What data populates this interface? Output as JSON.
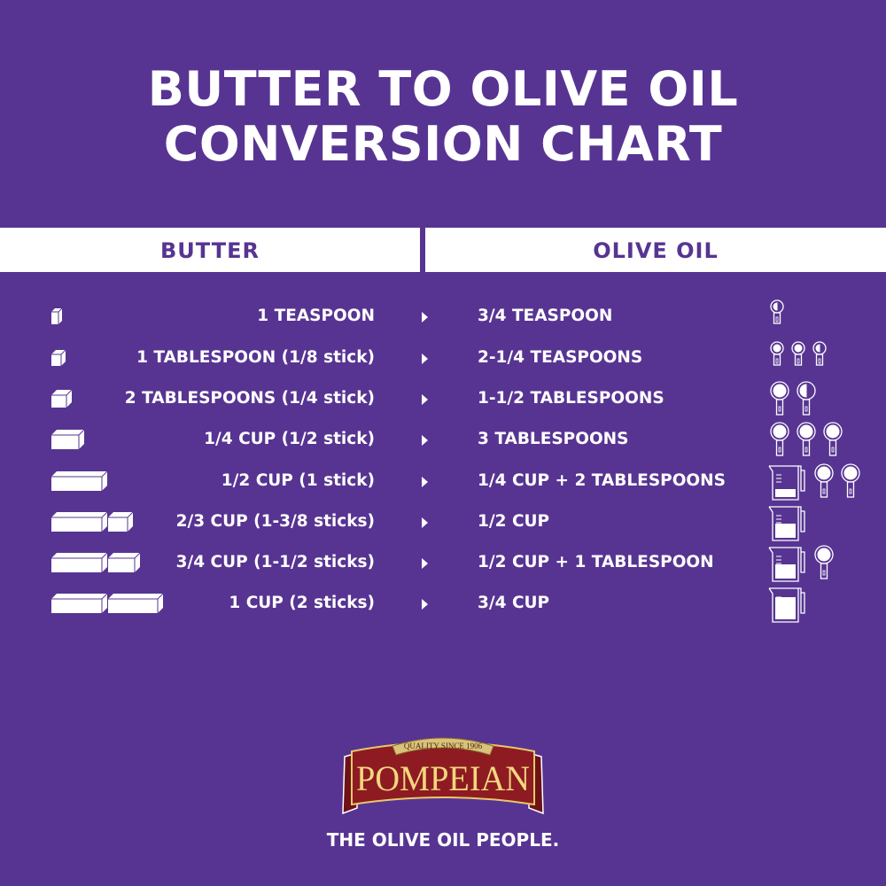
{
  "title": {
    "line1": "BUTTER TO OLIVE OIL",
    "line2": "CONVERSION CHART"
  },
  "headers": {
    "butter": "BUTTER",
    "olive_oil": "OLIVE OIL"
  },
  "colors": {
    "background": "#573492",
    "header_text": "#573492",
    "logo_red": "#8e1b22",
    "logo_gold": "#e8c86a"
  },
  "rows": [
    {
      "butter": "1 TEASPOON",
      "olive_oil": "3/4 TEASPOON",
      "butter_icon": "butter-cube-tiny",
      "oil_icons": [
        "teaspoon-half"
      ]
    },
    {
      "butter": "1 TABLESPOON (1/8 stick)",
      "olive_oil": "2-1/4 TEASPOONS",
      "butter_icon": "butter-cube-small",
      "oil_icons": [
        "teaspoon-full",
        "teaspoon-full",
        "teaspoon-half"
      ]
    },
    {
      "butter": "2 TABLESPOONS (1/4 stick)",
      "olive_oil": "1-1/2 TABLESPOONS",
      "butter_icon": "butter-cube",
      "oil_icons": [
        "tablespoon-full",
        "tablespoon-half"
      ]
    },
    {
      "butter": "1/4 CUP (1/2 stick)",
      "olive_oil": "3 TABLESPOONS",
      "butter_icon": "butter-half-stick",
      "oil_icons": [
        "tablespoon-full",
        "tablespoon-full",
        "tablespoon-full"
      ]
    },
    {
      "butter": "1/2 CUP (1 stick)",
      "olive_oil": "1/4 CUP + 2 TABLESPOONS",
      "butter_icon": "butter-stick",
      "oil_icons": [
        "measuring-cup-quarter",
        "tablespoon-full",
        "tablespoon-full"
      ]
    },
    {
      "butter": "2/3 CUP (1-3/8 sticks)",
      "olive_oil": "1/2 CUP",
      "butter_icon": "butter-stick-plus-small",
      "oil_icons": [
        "measuring-cup-half"
      ]
    },
    {
      "butter": "3/4 CUP (1-1/2 sticks)",
      "olive_oil": "1/2 CUP + 1 TABLESPOON",
      "butter_icon": "butter-stick-plus-half",
      "oil_icons": [
        "measuring-cup-half",
        "tablespoon-full"
      ]
    },
    {
      "butter": "1 CUP (2 sticks)",
      "olive_oil": "3/4 CUP",
      "butter_icon": "butter-two-sticks",
      "oil_icons": [
        "measuring-cup-three-quarter"
      ]
    }
  ],
  "logo": {
    "banner": "QUALITY SINCE 1906",
    "brand": "POMPEIAN"
  },
  "tagline": "THE OLIVE OIL PEOPLE."
}
